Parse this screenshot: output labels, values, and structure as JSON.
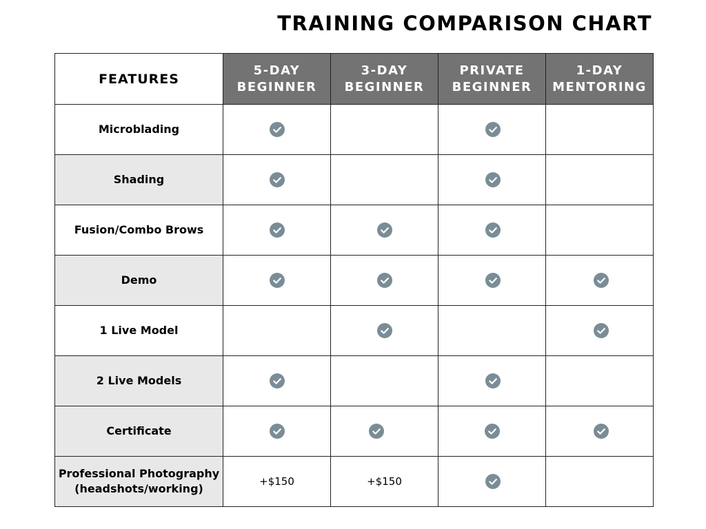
{
  "title": "TRAINING COMPARISON CHART",
  "columns": {
    "features": "FEATURES",
    "c1": [
      "5-DAY",
      "BEGINNER"
    ],
    "c2": [
      "3-DAY",
      "BEGINNER"
    ],
    "c3": [
      "PRIVATE",
      "BEGINNER"
    ],
    "c4": [
      "1-DAY",
      "MENTORING"
    ]
  },
  "rows": [
    {
      "feature": "Microblading",
      "cells": [
        "check",
        "",
        "check",
        ""
      ]
    },
    {
      "feature": "Shading",
      "cells": [
        "check",
        "",
        "check",
        ""
      ]
    },
    {
      "feature": "Fusion/Combo Brows",
      "cells": [
        "check",
        "check",
        "check",
        ""
      ]
    },
    {
      "feature": "Demo",
      "cells": [
        "check",
        "check",
        "check",
        "check"
      ]
    },
    {
      "feature": "1 Live Model",
      "cells": [
        "",
        "check",
        "",
        "check"
      ]
    },
    {
      "feature": "2 Live Models",
      "cells": [
        "check",
        "",
        "check",
        ""
      ]
    },
    {
      "feature": "Certificate",
      "cells": [
        "check",
        "check",
        "check",
        "check"
      ]
    },
    {
      "feature": [
        "Professional Photography",
        "(headshots/working)"
      ],
      "cells": [
        "+$150",
        "+$150",
        "check",
        ""
      ]
    }
  ],
  "colors": {
    "header_bg": "#737373",
    "header_text": "#ffffff",
    "shaded_row": "#e8e8e8",
    "check_icon": "#7a8d97",
    "border": "#222222"
  },
  "icons": {
    "included": "check-circle-icon"
  }
}
